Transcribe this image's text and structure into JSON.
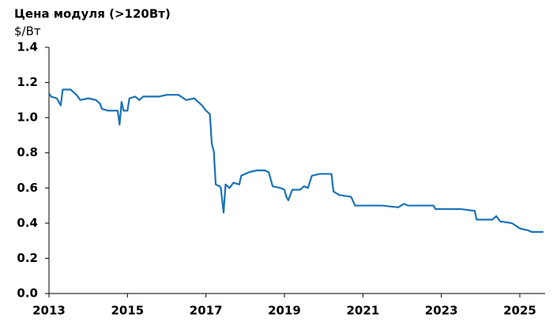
{
  "chart_data": {
    "type": "line",
    "title": "Цена модуля (>120Вт)",
    "y_label": "$/Вт",
    "color": "#1a72b6",
    "grid": false,
    "x": [
      2013.0,
      2013.05,
      2013.2,
      2013.3,
      2013.35,
      2013.55,
      2013.7,
      2013.8,
      2014.0,
      2014.2,
      2014.3,
      2014.35,
      2014.5,
      2014.75,
      2014.8,
      2014.85,
      2014.9,
      2015.0,
      2015.05,
      2015.2,
      2015.3,
      2015.4,
      2015.8,
      2016.0,
      2016.3,
      2016.5,
      2016.7,
      2016.8,
      2016.9,
      2017.0,
      2017.1,
      2017.15,
      2017.2,
      2017.25,
      2017.35,
      2017.38,
      2017.45,
      2017.5,
      2017.6,
      2017.7,
      2017.85,
      2017.9,
      2018.1,
      2018.3,
      2018.5,
      2018.6,
      2018.7,
      2018.9,
      2019.0,
      2019.05,
      2019.1,
      2019.2,
      2019.4,
      2019.5,
      2019.6,
      2019.7,
      2019.9,
      2020.2,
      2020.25,
      2020.4,
      2020.7,
      2020.8,
      2021.5,
      2021.9,
      2022.05,
      2022.15,
      2022.8,
      2022.85,
      2023.5,
      2023.85,
      2023.9,
      2024.3,
      2024.4,
      2024.5,
      2024.8,
      2025.0,
      2025.2,
      2025.3,
      2025.6
    ],
    "values": [
      1.14,
      1.12,
      1.11,
      1.07,
      1.16,
      1.16,
      1.13,
      1.1,
      1.11,
      1.1,
      1.08,
      1.05,
      1.04,
      1.04,
      0.96,
      1.09,
      1.04,
      1.04,
      1.11,
      1.12,
      1.1,
      1.12,
      1.12,
      1.13,
      1.13,
      1.1,
      1.11,
      1.09,
      1.07,
      1.04,
      1.02,
      0.85,
      0.81,
      0.62,
      0.61,
      0.6,
      0.46,
      0.62,
      0.6,
      0.63,
      0.62,
      0.67,
      0.69,
      0.7,
      0.7,
      0.69,
      0.61,
      0.6,
      0.59,
      0.55,
      0.53,
      0.59,
      0.59,
      0.61,
      0.6,
      0.67,
      0.68,
      0.68,
      0.58,
      0.56,
      0.55,
      0.5,
      0.5,
      0.49,
      0.51,
      0.5,
      0.5,
      0.48,
      0.48,
      0.47,
      0.42,
      0.42,
      0.44,
      0.41,
      0.4,
      0.37,
      0.36,
      0.35,
      0.35
    ],
    "xlim": [
      2013,
      2025.6
    ],
    "xticks": [
      2013,
      2015,
      2017,
      2019,
      2021,
      2023,
      2025
    ],
    "ylim": [
      0,
      1.4
    ],
    "yticks": [
      {
        "value": 0,
        "label": "0.0"
      },
      0.2,
      0.4,
      0.6,
      0.8,
      {
        "value": 1,
        "label": "1.0"
      },
      1.2,
      1.4
    ]
  }
}
